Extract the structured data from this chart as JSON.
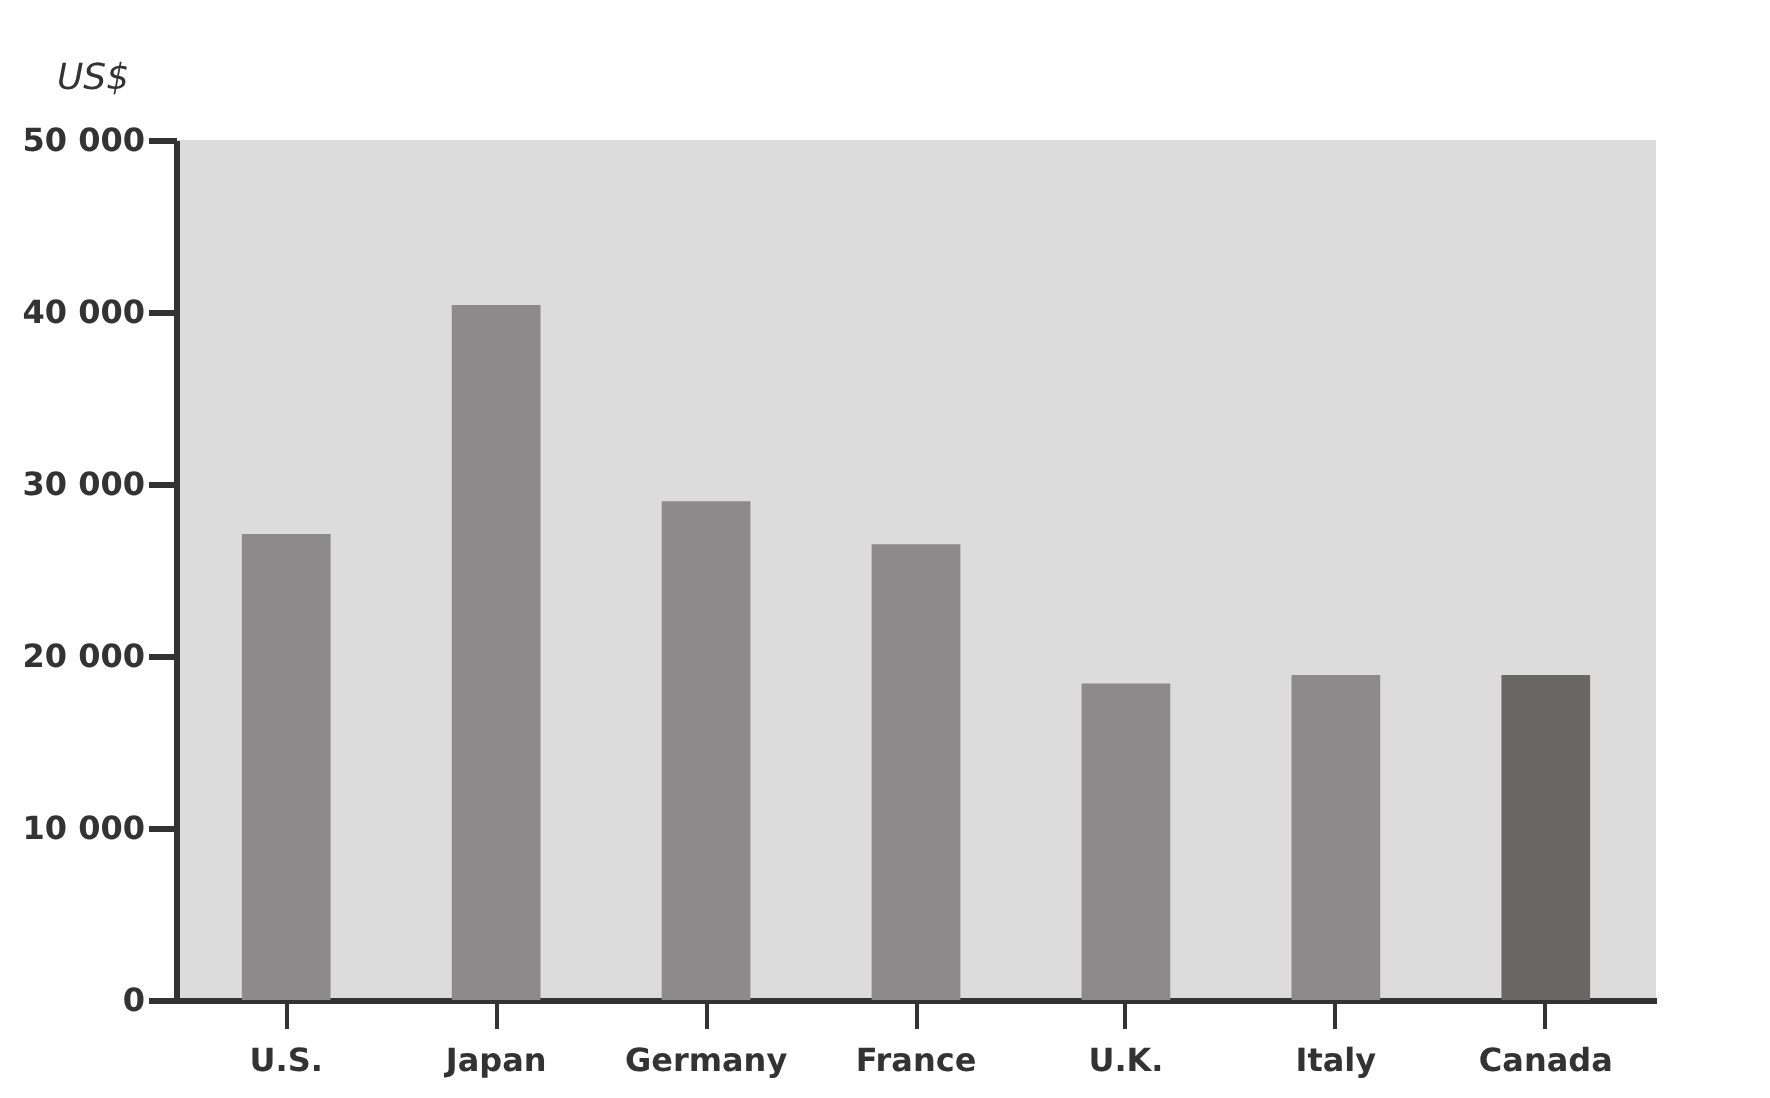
{
  "chart_data": {
    "type": "bar",
    "ylabel": "US$",
    "categories": [
      "U.S.",
      "Japan",
      "Germany",
      "France",
      "U.K.",
      "Italy",
      "Canada"
    ],
    "values": [
      27100,
      40400,
      29000,
      26500,
      18400,
      18900,
      18900
    ],
    "colors": [
      "#8c8a8a",
      "#8c8a8a",
      "#8c8a8a",
      "#8c8a8a",
      "#8c8a8a",
      "#8c8a8a",
      "#6a6666"
    ],
    "ylim": [
      0,
      50000
    ],
    "yticks": [
      {
        "value": 0,
        "label": "0"
      },
      {
        "value": 10000,
        "label": "10 000"
      },
      {
        "value": 20000,
        "label": "20 000"
      },
      {
        "value": 30000,
        "label": "30 000"
      },
      {
        "value": 40000,
        "label": "40 000"
      },
      {
        "value": 50000,
        "label": "50 000"
      }
    ],
    "grid": false
  }
}
